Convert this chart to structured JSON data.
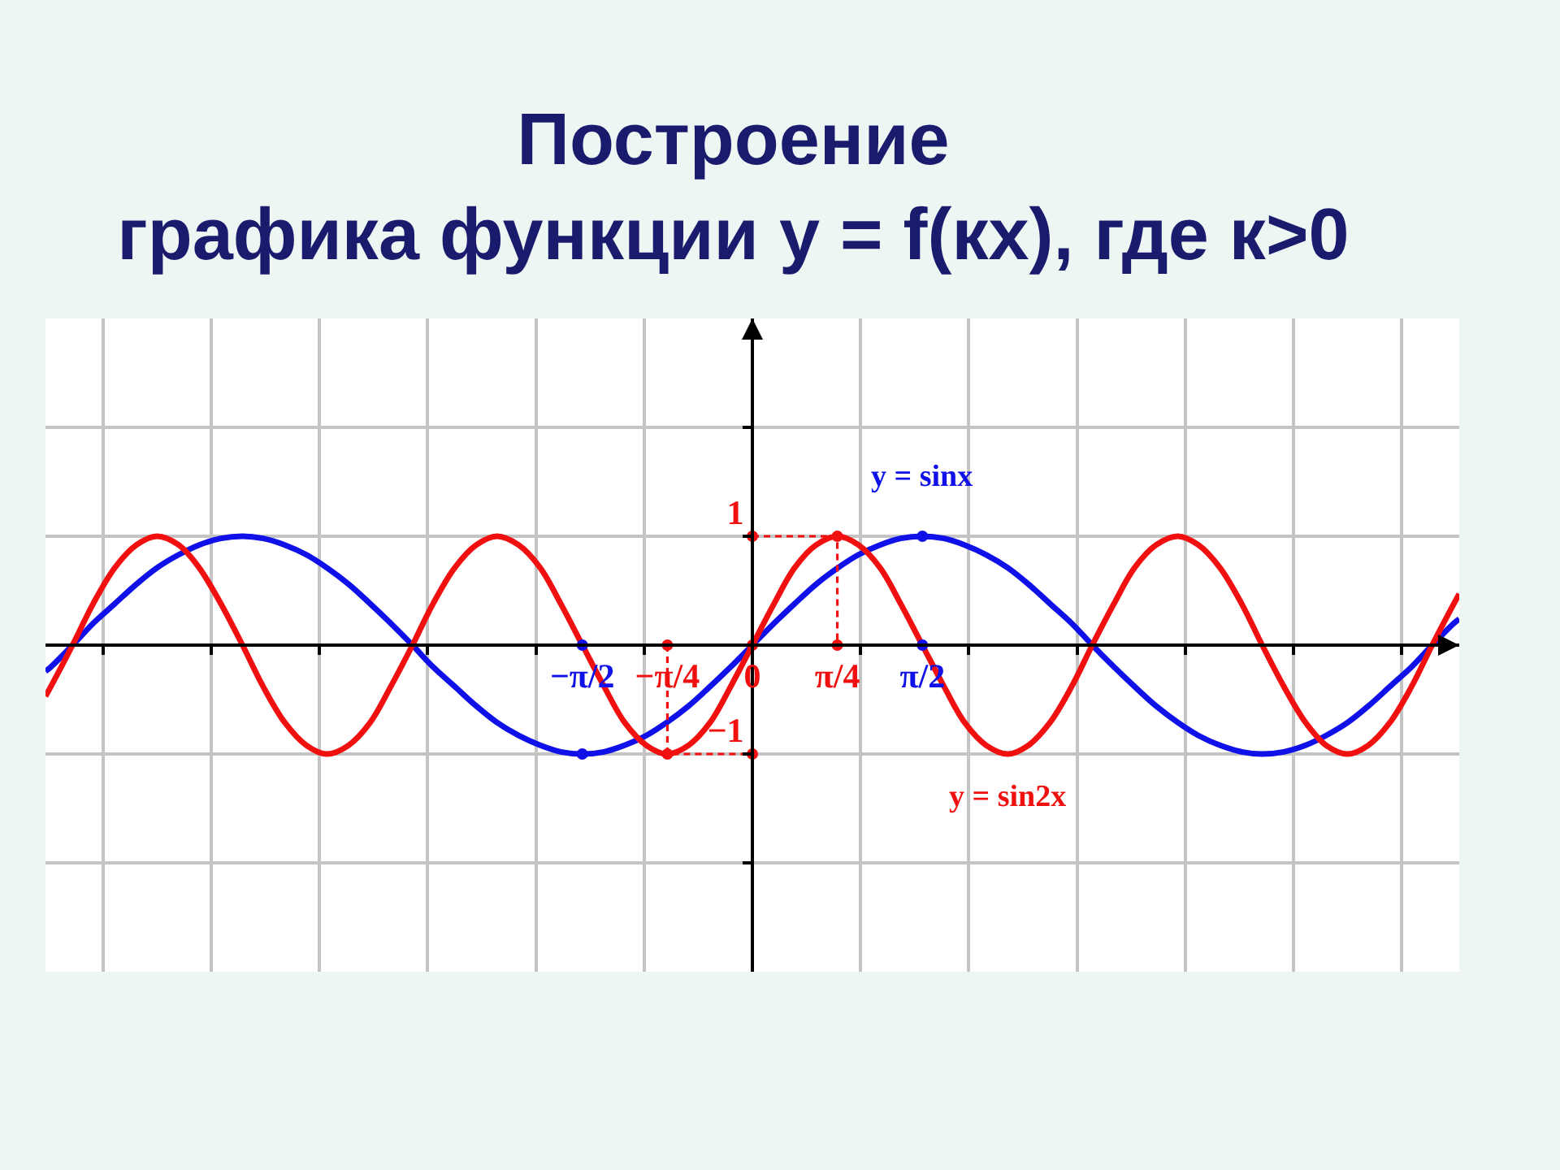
{
  "chart_data": {
    "type": "line",
    "title": "Построение\nграфика функции y = f(кх), где к>0",
    "x": [
      -6.53,
      -6.48,
      -6.28,
      -6.09,
      -5.89,
      -5.69,
      -5.5,
      -5.3,
      -5.11,
      -4.91,
      -4.71,
      -4.52,
      -4.32,
      -4.12,
      -3.93,
      -3.73,
      -3.53,
      -3.34,
      -3.14,
      -2.95,
      -2.75,
      -2.55,
      -2.36,
      -2.16,
      -1.96,
      -1.77,
      -1.57,
      -1.37,
      -1.18,
      -0.98,
      -0.79,
      -0.59,
      -0.39,
      -0.2,
      0,
      0.2,
      0.39,
      0.59,
      0.79,
      0.98,
      1.18,
      1.37,
      1.57,
      1.77,
      1.96,
      2.16,
      2.36,
      2.55,
      2.75,
      2.95,
      3.14,
      3.34,
      3.53,
      3.73,
      3.93,
      4.12,
      4.32,
      4.52,
      4.71,
      4.91,
      5.11,
      5.3,
      5.5,
      5.69,
      5.89,
      6.09,
      6.28,
      6.48,
      6.53
    ],
    "series": [
      {
        "name": "y = sinx",
        "color": "#1010e8",
        "values": [
          -0.24,
          -0.2,
          0,
          0.2,
          0.38,
          0.56,
          0.71,
          0.83,
          0.92,
          0.98,
          1,
          0.98,
          0.92,
          0.83,
          0.71,
          0.56,
          0.38,
          0.2,
          0,
          -0.2,
          -0.38,
          -0.56,
          -0.71,
          -0.83,
          -0.92,
          -0.98,
          -1,
          -0.98,
          -0.92,
          -0.83,
          -0.71,
          -0.56,
          -0.38,
          -0.2,
          0,
          0.2,
          0.38,
          0.56,
          0.71,
          0.83,
          0.92,
          0.98,
          1,
          0.98,
          0.92,
          0.83,
          0.71,
          0.56,
          0.38,
          0.2,
          0,
          -0.2,
          -0.38,
          -0.56,
          -0.71,
          -0.83,
          -0.92,
          -0.98,
          -1,
          -0.98,
          -0.92,
          -0.83,
          -0.71,
          -0.56,
          -0.38,
          -0.2,
          0,
          0.2,
          0.24
        ]
      },
      {
        "name": "y = sin2x",
        "color": "#f01010",
        "values": [
          -0.47,
          -0.38,
          0,
          0.38,
          0.71,
          0.92,
          1,
          0.92,
          0.71,
          0.38,
          0,
          -0.38,
          -0.71,
          -0.92,
          -1,
          -0.92,
          -0.71,
          -0.38,
          0,
          0.38,
          0.71,
          0.92,
          1,
          0.92,
          0.71,
          0.38,
          0,
          -0.38,
          -0.71,
          -0.92,
          -1,
          -0.92,
          -0.71,
          -0.38,
          0,
          0.38,
          0.71,
          0.92,
          1,
          0.92,
          0.71,
          0.38,
          0,
          -0.38,
          -0.71,
          -0.92,
          -1,
          -0.92,
          -0.71,
          -0.38,
          0,
          0.38,
          0.71,
          0.92,
          1,
          0.92,
          0.71,
          0.38,
          0,
          -0.38,
          -0.71,
          -0.92,
          -1,
          -0.92,
          -0.71,
          -0.38,
          0,
          0.38,
          0.47
        ]
      },
      {
        "type": "line",
        "color": "#f01010",
        "line_style": "dashed",
        "marker": "circle",
        "x": [
          0,
          0.785,
          0.785
        ],
        "values": [
          1,
          1,
          0
        ]
      },
      {
        "type": "line",
        "color": "#f01010",
        "line_style": "dashed",
        "marker": "circle",
        "x": [
          -0.785,
          -0.785,
          0
        ],
        "values": [
          0,
          -1,
          -1
        ]
      },
      {
        "type": "scatter",
        "color": "#f01010",
        "marker": "circle",
        "x": [
          0
        ],
        "values": [
          0
        ]
      },
      {
        "type": "scatter",
        "color": "#1010e8",
        "marker": "circle",
        "x": [
          -1.571,
          -1.571,
          1.571,
          1.571
        ],
        "values": [
          -1,
          0,
          0,
          1
        ]
      }
    ],
    "xlim": [
      -6.53,
      6.53
    ],
    "ylim": [
      -3,
      3
    ],
    "xticks": [
      {
        "value": -6,
        "label": null
      },
      {
        "value": -5,
        "label": null
      },
      {
        "value": -4,
        "label": null
      },
      {
        "value": -3,
        "label": null
      },
      {
        "value": -2,
        "label": null
      },
      {
        "value": -1.571,
        "label": "−π/2"
      },
      {
        "value": -1,
        "label": null
      },
      {
        "value": -0.785,
        "label": "−π/4"
      },
      0,
      {
        "value": 0.785,
        "label": "π/4"
      },
      {
        "value": 1,
        "label": null
      },
      {
        "value": 1.571,
        "label": "π/2"
      },
      {
        "value": 2,
        "label": null
      },
      {
        "value": 3,
        "label": null
      },
      {
        "value": 4,
        "label": null
      },
      {
        "value": 5,
        "label": null
      },
      {
        "value": 6,
        "label": null
      }
    ],
    "yticks": [
      {
        "value": -2,
        "label": null
      },
      {
        "value": -1,
        "label": "−1"
      },
      1,
      {
        "value": 2,
        "label": null
      }
    ],
    "grid": true,
    "legend": false
  }
}
